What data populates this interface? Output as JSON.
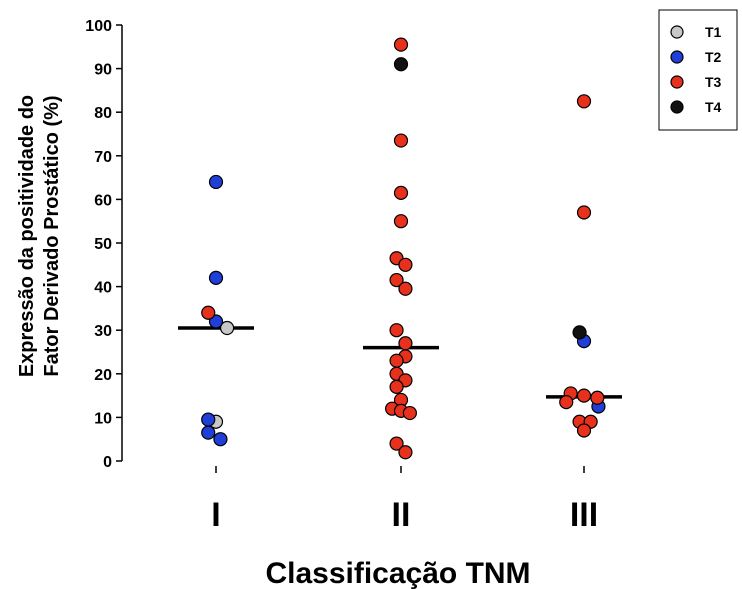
{
  "chart_data": {
    "type": "scatter",
    "ylabel_lines": [
      "Expressão da positividade do",
      "Fator Derivado Prostático (%)"
    ],
    "xlabel": "Classificação TNM",
    "categories": [
      "I",
      "II",
      "III"
    ],
    "ylim": [
      0,
      100
    ],
    "yticks": [
      0,
      10,
      20,
      30,
      40,
      50,
      60,
      70,
      80,
      90,
      100
    ],
    "grid": false,
    "legend_position": "top-right",
    "series": [
      {
        "name": "T1",
        "color": "#c8c8c8",
        "points": [
          {
            "category": "I",
            "offset": 0.1,
            "y": 30.5
          },
          {
            "category": "I",
            "offset": 0.0,
            "y": 9
          }
        ]
      },
      {
        "name": "T2",
        "color": "#1f3fd8",
        "points": [
          {
            "category": "I",
            "offset": 0.0,
            "y": 64
          },
          {
            "category": "I",
            "offset": 0.0,
            "y": 42
          },
          {
            "category": "I",
            "offset": 0.0,
            "y": 32
          },
          {
            "category": "I",
            "offset": -0.07,
            "y": 9.5
          },
          {
            "category": "I",
            "offset": -0.07,
            "y": 6.5
          },
          {
            "category": "I",
            "offset": 0.04,
            "y": 5
          },
          {
            "category": "III",
            "offset": 0.0,
            "y": 27.5
          },
          {
            "category": "III",
            "offset": 0.13,
            "y": 12.5
          }
        ]
      },
      {
        "name": "T3",
        "color": "#e8311c",
        "points": [
          {
            "category": "I",
            "offset": -0.07,
            "y": 34
          },
          {
            "category": "II",
            "offset": 0.0,
            "y": 95.5
          },
          {
            "category": "II",
            "offset": 0.0,
            "y": 73.5
          },
          {
            "category": "II",
            "offset": 0.0,
            "y": 61.5
          },
          {
            "category": "II",
            "offset": 0.0,
            "y": 55
          },
          {
            "category": "II",
            "offset": -0.04,
            "y": 46.5
          },
          {
            "category": "II",
            "offset": 0.04,
            "y": 45
          },
          {
            "category": "II",
            "offset": -0.04,
            "y": 41.5
          },
          {
            "category": "II",
            "offset": 0.04,
            "y": 39.5
          },
          {
            "category": "II",
            "offset": -0.04,
            "y": 30
          },
          {
            "category": "II",
            "offset": 0.04,
            "y": 27
          },
          {
            "category": "II",
            "offset": 0.04,
            "y": 24
          },
          {
            "category": "II",
            "offset": -0.04,
            "y": 23
          },
          {
            "category": "II",
            "offset": -0.04,
            "y": 20
          },
          {
            "category": "II",
            "offset": 0.04,
            "y": 18.5
          },
          {
            "category": "II",
            "offset": -0.04,
            "y": 17
          },
          {
            "category": "II",
            "offset": 0.0,
            "y": 14
          },
          {
            "category": "II",
            "offset": -0.08,
            "y": 12
          },
          {
            "category": "II",
            "offset": 0.0,
            "y": 11.5
          },
          {
            "category": "II",
            "offset": 0.08,
            "y": 11
          },
          {
            "category": "II",
            "offset": -0.04,
            "y": 4
          },
          {
            "category": "II",
            "offset": 0.04,
            "y": 2
          },
          {
            "category": "III",
            "offset": 0.0,
            "y": 82.5
          },
          {
            "category": "III",
            "offset": 0.0,
            "y": 57
          },
          {
            "category": "III",
            "offset": -0.12,
            "y": 15.5
          },
          {
            "category": "III",
            "offset": 0.0,
            "y": 15
          },
          {
            "category": "III",
            "offset": 0.12,
            "y": 14.5
          },
          {
            "category": "III",
            "offset": -0.16,
            "y": 13.5
          },
          {
            "category": "III",
            "offset": -0.04,
            "y": 9
          },
          {
            "category": "III",
            "offset": 0.06,
            "y": 9
          },
          {
            "category": "III",
            "offset": 0.0,
            "y": 7
          }
        ]
      },
      {
        "name": "T4",
        "color": "#111111",
        "points": [
          {
            "category": "II",
            "offset": 0.0,
            "y": 91
          },
          {
            "category": "III",
            "offset": -0.04,
            "y": 29.5
          }
        ]
      }
    ],
    "medians": [
      {
        "category": "I",
        "y": 30.5
      },
      {
        "category": "II",
        "y": 26
      },
      {
        "category": "III",
        "y": 14.7
      }
    ]
  }
}
